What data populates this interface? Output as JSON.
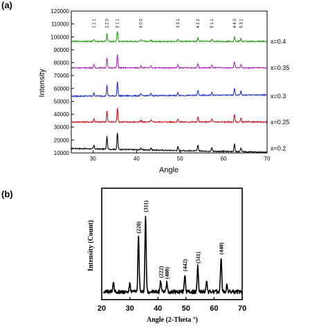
{
  "chart_data": [
    {
      "panel_label": "(a)",
      "type": "line",
      "xlabel": "Angle",
      "ylabel": "Intensity",
      "xlim": [
        25,
        70
      ],
      "ylim": [
        10000,
        120000
      ],
      "x_ticks": [
        30,
        40,
        50,
        60,
        70
      ],
      "y_ticks": [
        10000,
        20000,
        30000,
        40000,
        50000,
        60000,
        70000,
        80000,
        90000,
        100000,
        110000,
        120000
      ],
      "x_tick_labels": [
        "30",
        "40",
        "50",
        "60",
        "70"
      ],
      "y_tick_labels": [
        "10000",
        "20000",
        "30000",
        "40000",
        "50000",
        "60000",
        "70000",
        "80000",
        "90000",
        "100000",
        "110000",
        "120000"
      ],
      "peaks": [
        {
          "x": 30.2,
          "rel": 0.22
        },
        {
          "x": 33.2,
          "rel": 0.75
        },
        {
          "x": 35.6,
          "rel": 1.0
        },
        {
          "x": 41.0,
          "rel": 0.14
        },
        {
          "x": 43.3,
          "rel": 0.14
        },
        {
          "x": 49.5,
          "rel": 0.22
        },
        {
          "x": 54.1,
          "rel": 0.36
        },
        {
          "x": 57.3,
          "rel": 0.2
        },
        {
          "x": 62.5,
          "rel": 0.5
        },
        {
          "x": 64.0,
          "rel": 0.26
        }
      ],
      "series": [
        {
          "name": "x=0.2",
          "color": "#000000",
          "baseline": 13500,
          "peak_max": 13000,
          "slope": -3000
        },
        {
          "name": "x=0.25",
          "color": "#d0141e",
          "baseline": 34000,
          "peak_max": 11500,
          "slope": 0
        },
        {
          "name": "x=0.3",
          "color": "#2233cc",
          "baseline": 54000,
          "peak_max": 11000,
          "slope": 1000
        },
        {
          "name": "x=0.35",
          "color": "#b030c0",
          "baseline": 76000,
          "peak_max": 10500,
          "slope": 0
        },
        {
          "name": "x=0.4",
          "color": "#2a9d18",
          "baseline": 96500,
          "peak_max": 8000,
          "slope": 0
        }
      ],
      "annotations": [
        {
          "text": "1 1 1",
          "x": 30.2
        },
        {
          "text": "2 2 0",
          "x": 33.2
        },
        {
          "text": "3 1 1",
          "x": 35.6
        },
        {
          "text": "4 0 0",
          "x": 41.0
        },
        {
          "text": "3 3 1",
          "x": 49.5
        },
        {
          "text": "4 2 2",
          "x": 54.1
        },
        {
          "text": "5 1 1",
          "x": 57.3
        },
        {
          "text": "4 4 0",
          "x": 62.5
        },
        {
          "text": "5 3 1",
          "x": 64.0
        }
      ]
    },
    {
      "panel_label": "(b)",
      "type": "line",
      "xlabel": "Angle (2-Theta °)",
      "ylabel": "Intensity (Count)",
      "xlim": [
        20,
        70
      ],
      "ylim": [
        0,
        1
      ],
      "x_ticks": [
        20,
        30,
        40,
        50,
        60,
        70
      ],
      "x_tick_labels": [
        "20",
        "30",
        "40",
        "50",
        "60",
        "70"
      ],
      "baseline": 0.07,
      "peaks": [
        {
          "x": 24.2,
          "h": 0.09
        },
        {
          "x": 30.0,
          "h": 0.07
        },
        {
          "x": 33.1,
          "h": 0.5,
          "label": "(220)"
        },
        {
          "x": 35.6,
          "h": 0.69,
          "label": "(311)"
        },
        {
          "x": 41.0,
          "h": 0.1,
          "label": "(222)"
        },
        {
          "x": 43.2,
          "h": 0.09,
          "label": "(400)"
        },
        {
          "x": 49.6,
          "h": 0.16,
          "label": "(442)"
        },
        {
          "x": 54.2,
          "h": 0.23,
          "label": "(511)"
        },
        {
          "x": 57.3,
          "h": 0.1
        },
        {
          "x": 62.5,
          "h": 0.31,
          "label": "(440)"
        },
        {
          "x": 64.6,
          "h": 0.06
        }
      ]
    }
  ]
}
